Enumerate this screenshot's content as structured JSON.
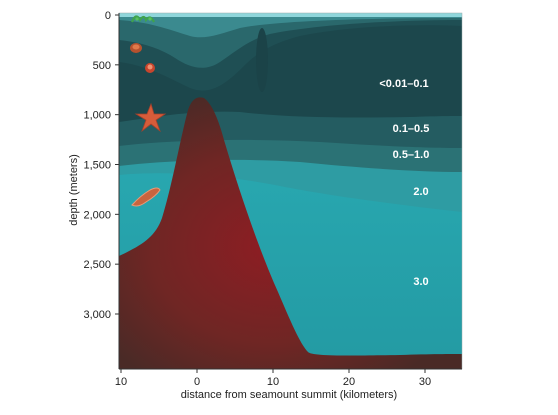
{
  "y_axis": {
    "title": "depth (meters)",
    "ticks": [
      {
        "label": "0",
        "value": 0
      },
      {
        "label": "500",
        "value": 500
      },
      {
        "label": "1,000",
        "value": 1000
      },
      {
        "label": "1,500",
        "value": 1500
      },
      {
        "label": "2,000",
        "value": 2000
      },
      {
        "label": "2,500",
        "value": 2500
      },
      {
        "label": "3,000",
        "value": 3000
      }
    ]
  },
  "x_axis": {
    "title": "distance from seamount summit (kilometers)",
    "ticks": [
      {
        "label": "10",
        "value": -10
      },
      {
        "label": "0",
        "value": 0
      },
      {
        "label": "10",
        "value": 10
      },
      {
        "label": "20",
        "value": 20
      },
      {
        "label": "30",
        "value": 30
      }
    ]
  },
  "zones": [
    {
      "label": "<0.01–0.1"
    },
    {
      "label": "0.1–0.5"
    },
    {
      "label": "0.5–1.0"
    },
    {
      "label": "2.0"
    },
    {
      "label": "3.0"
    }
  ],
  "colors": {
    "surface": "#8fd6db",
    "zone_1": "#1d4a4f",
    "zone_2": "#245b60",
    "zone_3": "#2d6e71",
    "zone_4": "#2f9aa0",
    "zone_5": "#2bb0b8",
    "seamount_core": "#8a1e22",
    "seamount_edge": "#5b2a26"
  },
  "organisms": [
    {
      "icon": "seaweed-icon"
    },
    {
      "icon": "sponge-icon"
    },
    {
      "icon": "coral-icon"
    },
    {
      "icon": "starfish-icon"
    },
    {
      "icon": "sea-cucumber-icon"
    }
  ]
}
